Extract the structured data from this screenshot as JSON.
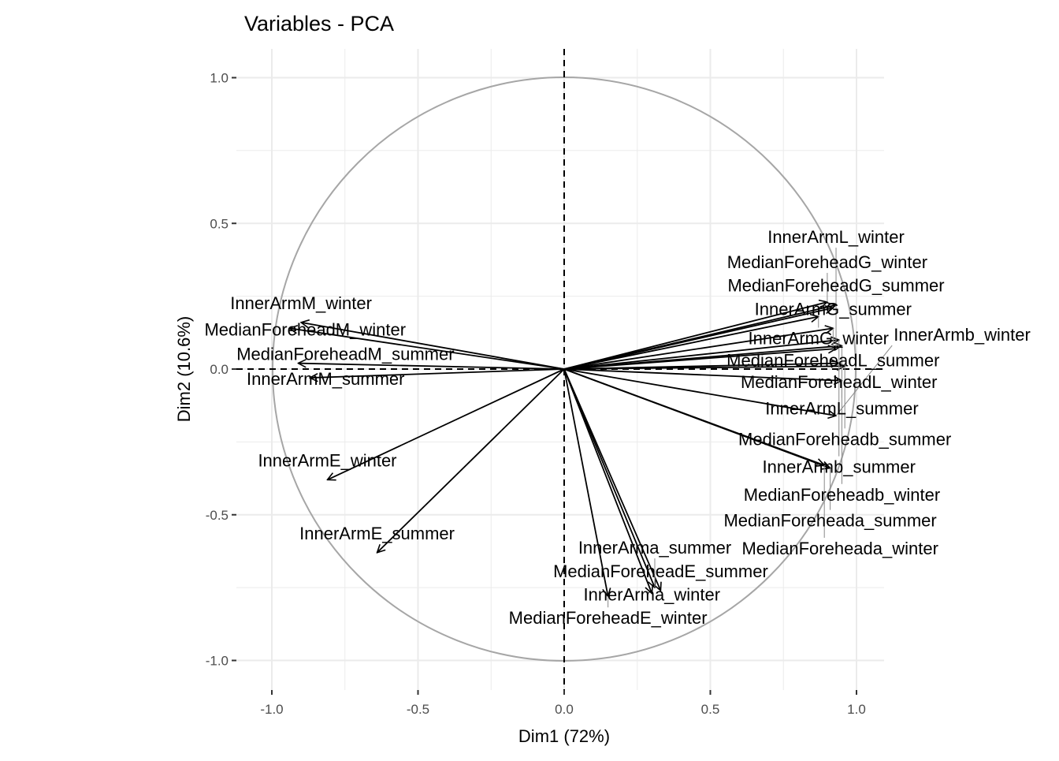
{
  "chart_data": {
    "type": "scatter",
    "subtype": "pca-variable-correlation-circle",
    "title": "Variables - PCA",
    "xlabel": "Dim1 (72%)",
    "ylabel": "Dim2 (10.6%)",
    "xlim": [
      -1.1,
      1.1
    ],
    "ylim": [
      -1.1,
      1.1
    ],
    "xticks": [
      -1.0,
      -0.5,
      0.0,
      0.5,
      1.0
    ],
    "yticks": [
      -1.0,
      -0.5,
      0.0,
      0.5,
      1.0
    ],
    "xtick_labels": [
      "-1.0",
      "-0.5",
      "0.0",
      "0.5",
      "1.0"
    ],
    "ytick_labels": [
      "-1.0",
      "-0.5",
      "0.0",
      "0.5",
      "1.0"
    ],
    "grid": true,
    "unit_circle": true,
    "colors": {
      "arrow": "#000000",
      "circle": "#a6a6a6",
      "grid": "#ebebeb"
    },
    "variables": [
      {
        "name": "InnerArmM_winter",
        "x": -0.9,
        "y": 0.16
      },
      {
        "name": "MedianForeheadM_winter",
        "x": -0.94,
        "y": 0.14
      },
      {
        "name": "MedianForeheadM_summer",
        "x": -0.91,
        "y": 0.02
      },
      {
        "name": "InnerArmM_summer",
        "x": -0.87,
        "y": -0.03
      },
      {
        "name": "InnerArmE_winter",
        "x": -0.81,
        "y": -0.38
      },
      {
        "name": "InnerArmE_summer",
        "x": -0.64,
        "y": -0.63
      },
      {
        "name": "MedianForeheadE_summer",
        "x": 0.33,
        "y": -0.76
      },
      {
        "name": "InnerArma_summer",
        "x": 0.31,
        "y": -0.75
      },
      {
        "name": "InnerArma_winter",
        "x": 0.3,
        "y": -0.77
      },
      {
        "name": "MedianForeheadE_winter",
        "x": 0.15,
        "y": -0.78
      },
      {
        "name": "MedianForeheadG_summer",
        "x": 0.93,
        "y": 0.22
      },
      {
        "name": "InnerArmG_summer",
        "x": 0.92,
        "y": 0.21
      },
      {
        "name": "MedianForeheadG_winter",
        "x": 0.9,
        "y": 0.23
      },
      {
        "name": "InnerArmG_winter",
        "x": 0.87,
        "y": 0.18
      },
      {
        "name": "MedianForeheadL_summer",
        "x": 0.92,
        "y": 0.14
      },
      {
        "name": "MedianForeheadL_winter",
        "x": 0.94,
        "y": 0.1
      },
      {
        "name": "InnerArmL_summer",
        "x": 0.95,
        "y": 0.08
      },
      {
        "name": "InnerArmL_winter",
        "x": 0.93,
        "y": 0.07
      },
      {
        "name": "MedianForeheadb_summer",
        "x": 0.96,
        "y": 0.01
      },
      {
        "name": "InnerArmb_summer",
        "x": 0.94,
        "y": 0.02
      },
      {
        "name": "MedianForeheadb_winter",
        "x": 0.95,
        "y": -0.04
      },
      {
        "name": "InnerArmb_winter",
        "x": 0.93,
        "y": -0.16
      },
      {
        "name": "MedianForeheada_summer",
        "x": 0.91,
        "y": -0.34
      },
      {
        "name": "MedianForeheada_winter",
        "x": 0.89,
        "y": -0.33
      }
    ]
  }
}
